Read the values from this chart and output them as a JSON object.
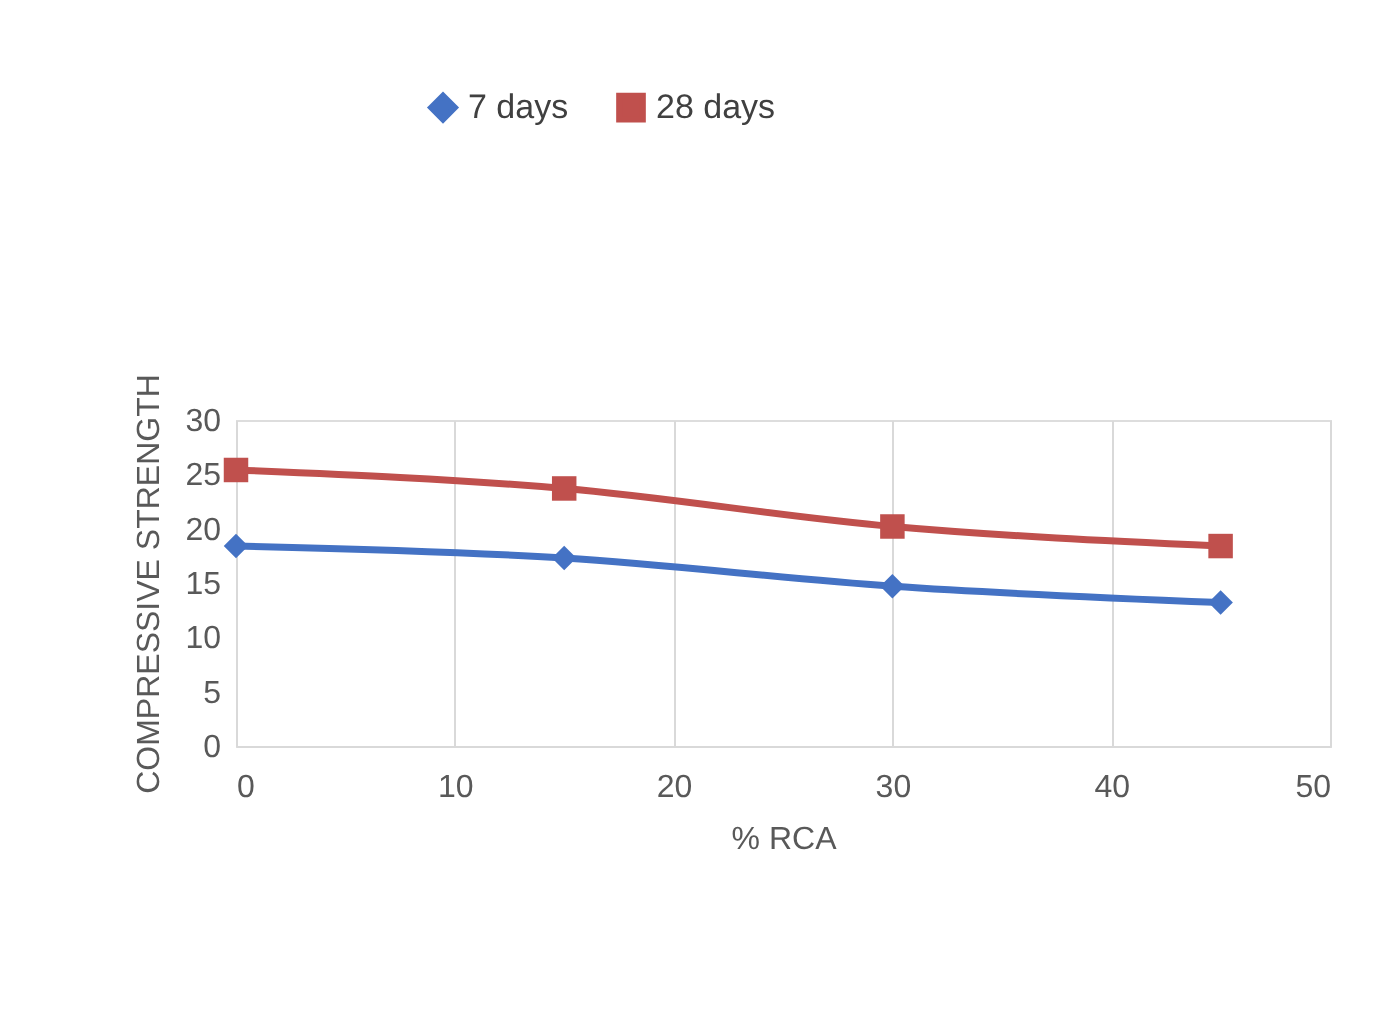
{
  "chart_data": {
    "type": "line",
    "xlabel": "% RCA",
    "ylabel": "COMPRESSIVE STRENGTH",
    "x": [
      0,
      15,
      30,
      45
    ],
    "series": [
      {
        "name": "7 days",
        "color": "#4472c4",
        "marker": "diamond",
        "values": [
          18.4,
          17.3,
          14.7,
          13.2
        ]
      },
      {
        "name": "28 days",
        "color": "#c0504d",
        "marker": "square",
        "values": [
          25.4,
          23.7,
          20.2,
          18.4
        ]
      }
    ],
    "xlim": [
      0,
      50
    ],
    "xticks": [
      0,
      10,
      20,
      30,
      40,
      50
    ],
    "ylim": [
      0,
      30
    ],
    "yticks": [
      0,
      5,
      10,
      15,
      20,
      25,
      30
    ],
    "grid": "x",
    "legend": "top",
    "line_style": "solid"
  }
}
